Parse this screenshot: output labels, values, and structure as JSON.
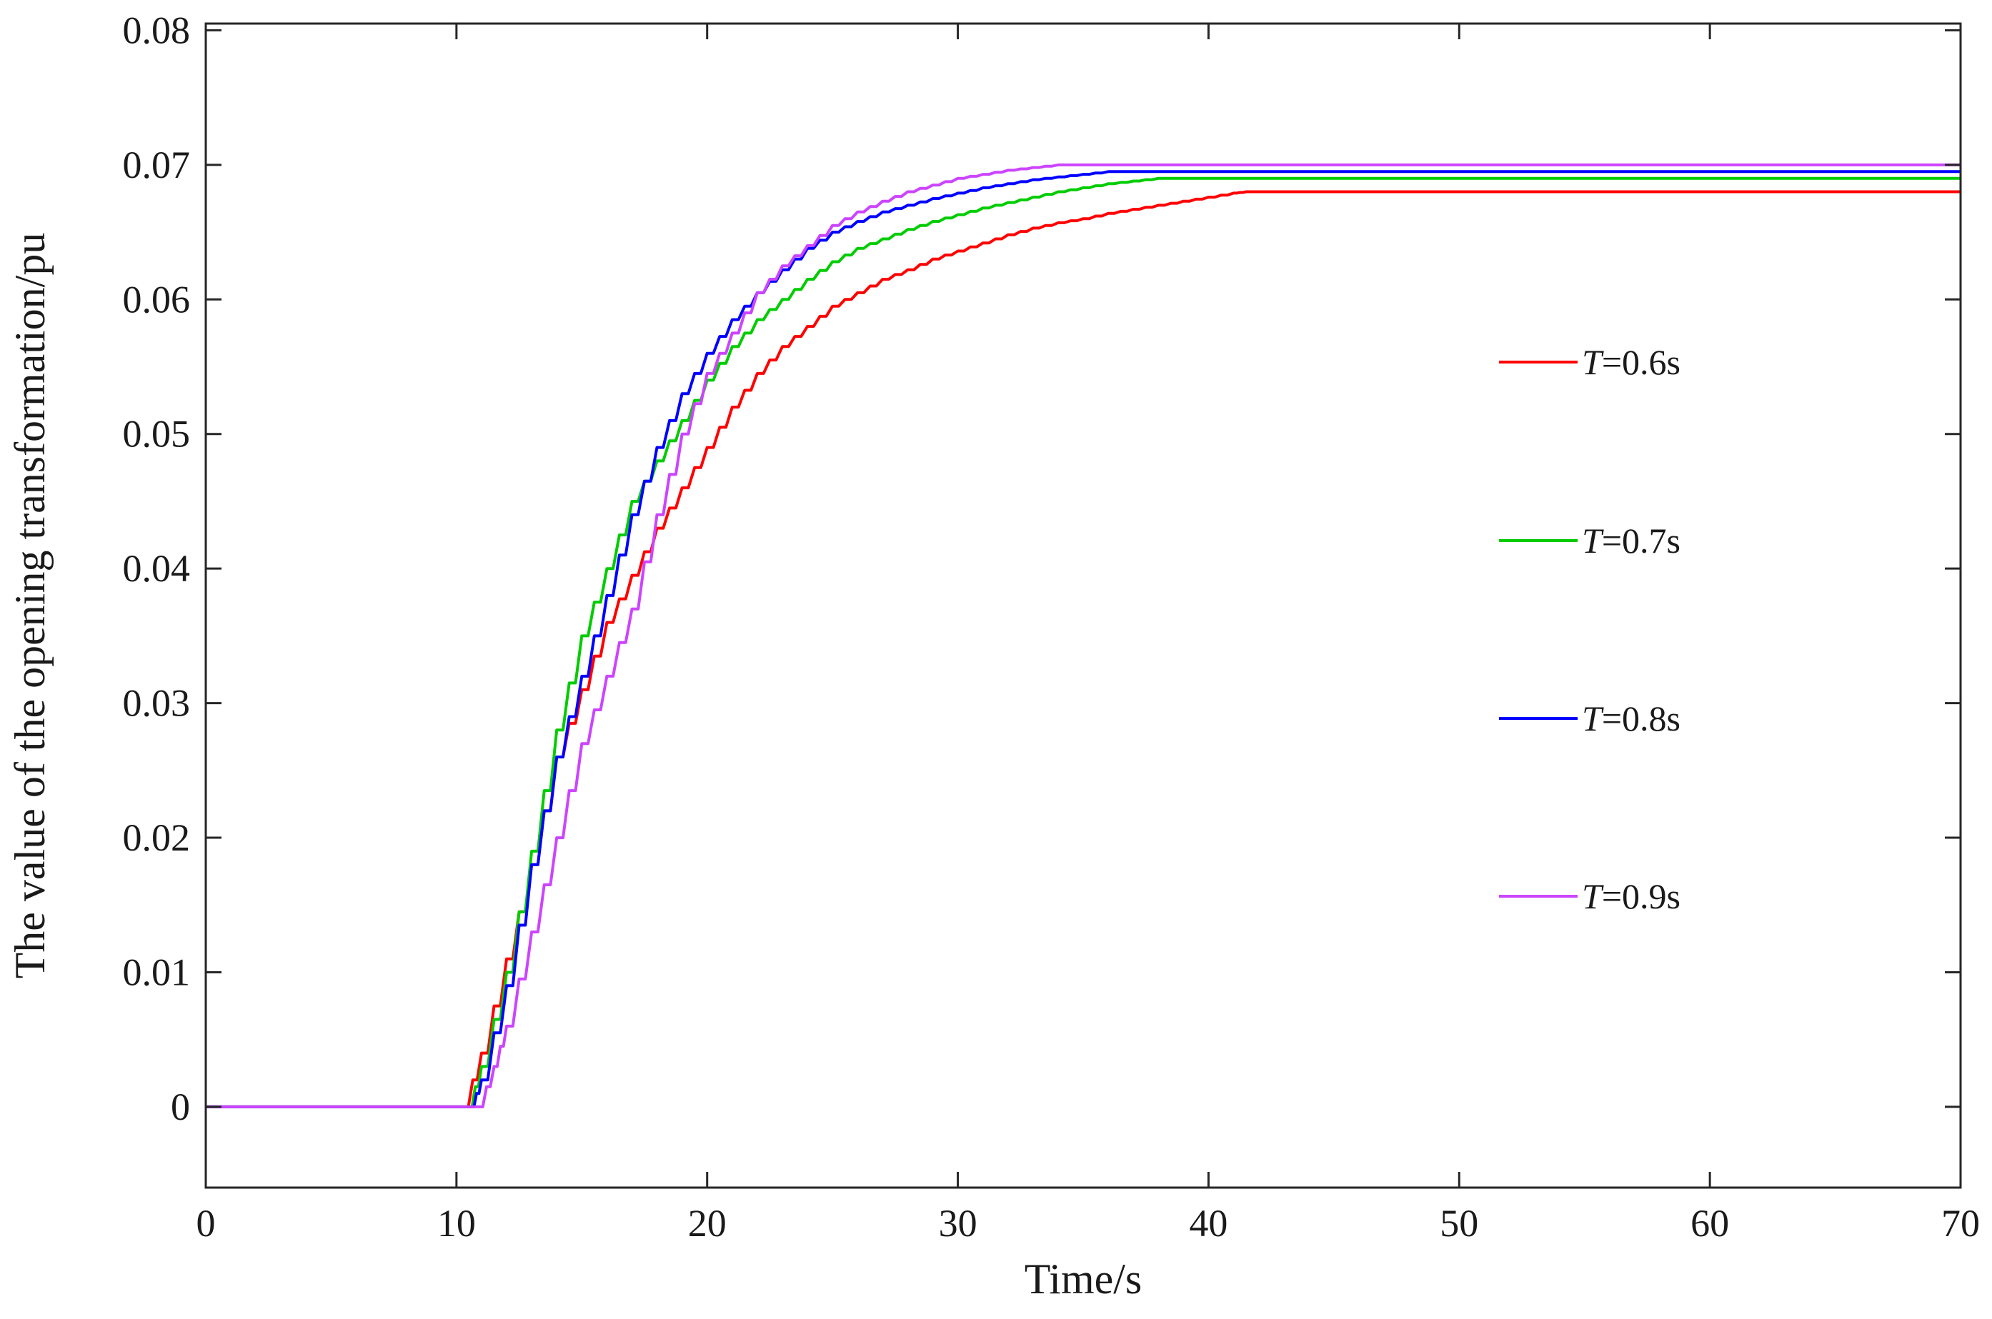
{
  "chart_data": {
    "type": "line",
    "title": "",
    "xlabel": "Time/s",
    "ylabel": "The value of the opening transformation/pu",
    "xlim": [
      0,
      70
    ],
    "ylim": [
      -0.006,
      0.0805
    ],
    "xticks": [
      0,
      10,
      20,
      30,
      40,
      50,
      60,
      70
    ],
    "xtick_labels": [
      "0",
      "10",
      "20",
      "30",
      "40",
      "50",
      "60",
      "70"
    ],
    "yticks": [
      0,
      0.01,
      0.02,
      0.03,
      0.04,
      0.05,
      0.06,
      0.07,
      0.08
    ],
    "ytick_labels": [
      "0",
      "0.01",
      "0.02",
      "0.03",
      "0.04",
      "0.05",
      "0.06",
      "0.07",
      "0.08"
    ],
    "grid": false,
    "legend_position": "right-middle",
    "series": [
      {
        "name": "T=0.6s",
        "legend_italic": "T",
        "legend_rest": "=0.6s",
        "color": "#ff0000",
        "x": [
          0,
          10.3,
          11,
          12,
          13,
          14,
          15,
          16,
          17,
          18,
          19,
          20,
          21,
          22,
          23,
          24,
          25,
          26,
          27,
          28,
          29,
          30,
          31,
          32,
          33,
          34,
          35,
          36,
          37,
          38,
          39,
          40,
          41,
          41.5,
          70
        ],
        "y": [
          0,
          0,
          0.004,
          0.011,
          0.018,
          0.026,
          0.031,
          0.036,
          0.0395,
          0.043,
          0.046,
          0.049,
          0.052,
          0.0545,
          0.0565,
          0.058,
          0.0595,
          0.0605,
          0.0615,
          0.0622,
          0.063,
          0.0636,
          0.0642,
          0.0648,
          0.0653,
          0.0657,
          0.066,
          0.0664,
          0.0667,
          0.067,
          0.0673,
          0.0676,
          0.0679,
          0.068,
          0.068
        ]
      },
      {
        "name": "T=0.7s",
        "legend_italic": "T",
        "legend_rest": "=0.7s",
        "color": "#00cc00",
        "x": [
          0,
          10.5,
          11,
          12,
          13,
          14,
          15,
          16,
          17,
          18,
          19,
          20,
          21,
          22,
          23,
          24,
          25,
          26,
          27,
          28,
          29,
          30,
          31,
          32,
          33,
          34,
          35,
          36,
          37,
          38,
          39,
          70
        ],
        "y": [
          0,
          0,
          0.003,
          0.01,
          0.019,
          0.028,
          0.035,
          0.04,
          0.045,
          0.048,
          0.051,
          0.054,
          0.0565,
          0.0585,
          0.06,
          0.0615,
          0.0628,
          0.0638,
          0.0645,
          0.0652,
          0.0658,
          0.0663,
          0.0668,
          0.0672,
          0.0676,
          0.068,
          0.0683,
          0.0686,
          0.0688,
          0.069,
          0.069,
          0.069
        ]
      },
      {
        "name": "T=0.8s",
        "legend_italic": "T",
        "legend_rest": "=0.8s",
        "color": "#0000ff",
        "x": [
          0,
          10.6,
          11,
          12,
          13,
          14,
          15,
          16,
          17,
          18,
          19,
          20,
          21,
          22,
          23,
          24,
          25,
          26,
          27,
          28,
          29,
          30,
          31,
          32,
          33,
          34,
          35,
          36,
          36.8,
          70
        ],
        "y": [
          0,
          0,
          0.002,
          0.009,
          0.018,
          0.026,
          0.032,
          0.038,
          0.044,
          0.049,
          0.053,
          0.056,
          0.0585,
          0.0605,
          0.0622,
          0.0638,
          0.065,
          0.0658,
          0.0665,
          0.067,
          0.0675,
          0.0679,
          0.0683,
          0.0686,
          0.0689,
          0.0691,
          0.0693,
          0.0695,
          0.0695,
          0.0695
        ]
      },
      {
        "name": "T=0.9s",
        "legend_italic": "T",
        "legend_rest": "=0.9s",
        "color": "#cc44ff",
        "x": [
          0,
          10.9,
          11.5,
          12,
          13,
          14,
          15,
          16,
          17,
          18,
          19,
          20,
          21,
          22,
          23,
          24,
          25,
          26,
          27,
          28,
          29,
          30,
          31,
          32,
          33,
          34,
          35,
          70
        ],
        "y": [
          0,
          0,
          0.003,
          0.006,
          0.013,
          0.02,
          0.027,
          0.032,
          0.037,
          0.044,
          0.05,
          0.0545,
          0.0575,
          0.0605,
          0.0625,
          0.064,
          0.0655,
          0.0665,
          0.0673,
          0.068,
          0.0685,
          0.069,
          0.0693,
          0.0696,
          0.0698,
          0.07,
          0.07,
          0.07
        ]
      }
    ]
  }
}
